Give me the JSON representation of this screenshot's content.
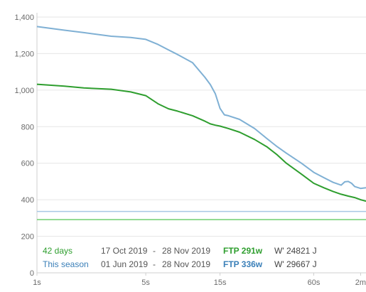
{
  "chart_data": {
    "type": "line",
    "x_scale": "log",
    "x_ticks": [
      {
        "value": 1,
        "label": "1s"
      },
      {
        "value": 5,
        "label": "5s"
      },
      {
        "value": 15,
        "label": "15s"
      },
      {
        "value": 60,
        "label": "60s"
      },
      {
        "value": 120,
        "label": "2m"
      }
    ],
    "xlim": [
      1,
      130
    ],
    "ylim": [
      0,
      1400
    ],
    "y_ticks": [
      0,
      200,
      400,
      600,
      800,
      1000,
      1200,
      1400
    ],
    "y_tick_labels": [
      "0",
      "200",
      "400",
      "600",
      "800",
      "1,000",
      "1,200",
      "1,400"
    ],
    "grid": true,
    "legend_position": "bottom-left",
    "series": [
      {
        "name": "42 days",
        "color": "#2e9e2e",
        "from": "17 Oct 2019",
        "to": "28 Nov 2019",
        "ftp_label": "FTP 291w",
        "w_prime": "W' 24821 J",
        "ftp": 291,
        "x": [
          1,
          1.5,
          2,
          3,
          4,
          5,
          6,
          7,
          8,
          10,
          12,
          13,
          14,
          15,
          17,
          20,
          25,
          30,
          35,
          40,
          50,
          60,
          70,
          80,
          90,
          100,
          110,
          120,
          130
        ],
        "values": [
          1032,
          1022,
          1012,
          1005,
          990,
          970,
          925,
          898,
          885,
          860,
          830,
          815,
          808,
          803,
          790,
          770,
          730,
          690,
          645,
          600,
          540,
          490,
          465,
          445,
          430,
          420,
          412,
          400,
          392
        ]
      },
      {
        "name": "This season",
        "color": "#7fb0d4",
        "from": "01 Jun 2019",
        "to": "28 Nov 2019",
        "ftp_label": "FTP 336w",
        "w_prime": "W' 29667 J",
        "ftp": 336,
        "x": [
          1,
          1.5,
          2,
          3,
          4,
          5,
          6,
          7,
          8,
          10,
          12,
          13,
          14,
          15,
          16,
          17,
          20,
          25,
          30,
          35,
          40,
          50,
          60,
          70,
          80,
          90,
          95,
          100,
          105,
          110,
          120,
          130
        ],
        "values": [
          1348,
          1328,
          1315,
          1295,
          1288,
          1278,
          1250,
          1220,
          1195,
          1150,
          1070,
          1030,
          980,
          900,
          865,
          860,
          840,
          790,
          735,
          690,
          655,
          600,
          550,
          520,
          495,
          480,
          498,
          500,
          490,
          472,
          462,
          466
        ]
      }
    ],
    "ftp_line_colors": [
      "#6fcf6f",
      "#a8c8e4"
    ]
  }
}
